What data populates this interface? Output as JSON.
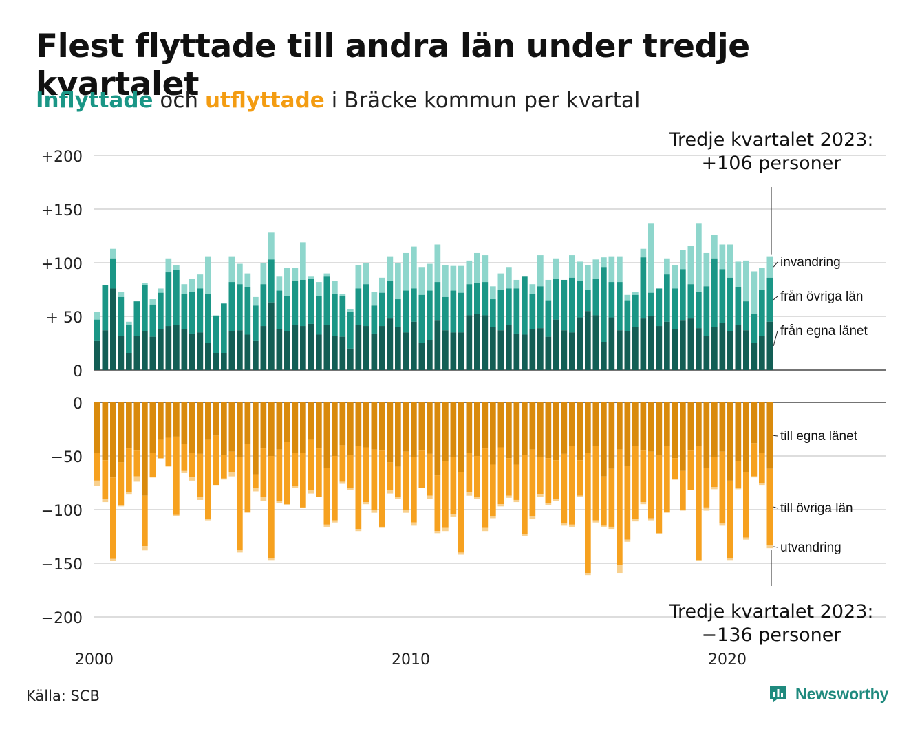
{
  "title": "Flest flyttade till andra län under tredje kvartalet",
  "subtitle": {
    "part1": "Inflyttade",
    "part2": "och",
    "part3": "utflyttade",
    "part4": "i Bräcke kommun per kvartal"
  },
  "source": "Källa: SCB",
  "brand": "Newsworthy",
  "colors": {
    "in_egna": "#135e55",
    "in_ovriga": "#1a9686",
    "in_invandring": "#8ed6cc",
    "out_egna": "#d98a0c",
    "out_ovriga": "#f6a11f",
    "out_utvandring": "#f8d08e",
    "accent_in": "#1a9686",
    "accent_out": "#f39c12",
    "grid": "#dddddd"
  },
  "chart_data": {
    "type": "bar",
    "stacked": true,
    "x_start": "2000 Q1",
    "x_ticks": [
      "2000",
      "2010",
      "2020"
    ],
    "y_ticks_in": [
      "+200",
      "+150",
      "+100",
      "+ 50",
      "0"
    ],
    "y_ticks_out": [
      "0",
      "−50",
      "−100",
      "−150",
      "−200"
    ],
    "ylim_in": [
      0,
      200
    ],
    "ylim_out": [
      -200,
      0
    ],
    "grid": true,
    "series_labels_in": [
      "invandring",
      "från övriga län",
      "från egna länet"
    ],
    "series_labels_out": [
      "till egna länet",
      "till övriga län",
      "utvandring"
    ],
    "annotation_in": {
      "line1": "Tredje kvartalet 2023:",
      "line2": "+106 personer"
    },
    "annotation_out": {
      "line1": "Tredje kvartalet 2023:",
      "line2": "−136 personer"
    },
    "inflyttade": {
      "fran_egna_lanet": [
        27,
        37,
        76,
        32,
        16,
        32,
        36,
        31,
        38,
        41,
        42,
        38,
        34,
        35,
        25,
        16,
        16,
        36,
        37,
        33,
        27,
        41,
        63,
        38,
        36,
        42,
        41,
        43,
        33,
        42,
        32,
        31,
        20,
        42,
        41,
        34,
        41,
        48,
        40,
        35,
        45,
        25,
        28,
        46,
        37,
        35,
        35,
        51,
        52,
        51,
        40,
        37,
        42,
        34,
        33,
        38,
        39,
        31,
        47,
        37,
        35,
        49,
        55,
        51,
        26,
        49,
        37,
        36,
        40,
        48,
        50,
        41,
        45,
        38,
        46,
        48,
        39,
        32,
        40,
        44,
        36,
        42,
        37,
        25,
        32,
        45
      ],
      "fran_ovriga_lan": [
        47,
        79,
        104,
        68,
        42,
        64,
        79,
        61,
        72,
        91,
        93,
        71,
        73,
        76,
        71,
        50,
        62,
        82,
        80,
        77,
        60,
        80,
        103,
        74,
        69,
        83,
        84,
        85,
        69,
        87,
        71,
        69,
        54,
        76,
        80,
        60,
        72,
        83,
        66,
        74,
        76,
        70,
        74,
        82,
        68,
        74,
        72,
        80,
        81,
        82,
        66,
        75,
        76,
        76,
        87,
        71,
        78,
        65,
        85,
        84,
        86,
        83,
        75,
        85,
        96,
        82,
        82,
        65,
        70,
        105,
        72,
        76,
        89,
        76,
        94,
        80,
        73,
        78,
        104,
        94,
        86,
        77,
        64,
        52,
        75,
        86
      ],
      "invandring": [
        54,
        79,
        113,
        73,
        45,
        64,
        81,
        66,
        76,
        104,
        98,
        80,
        85,
        89,
        106,
        51,
        61,
        106,
        99,
        90,
        68,
        100,
        128,
        87,
        95,
        95,
        119,
        87,
        82,
        90,
        83,
        71,
        57,
        98,
        100,
        73,
        86,
        106,
        100,
        109,
        115,
        96,
        99,
        117,
        98,
        97,
        97,
        102,
        109,
        107,
        78,
        90,
        96,
        84,
        87,
        80,
        107,
        84,
        104,
        82,
        107,
        101,
        98,
        103,
        105,
        106,
        106,
        70,
        73,
        113,
        137,
        72,
        104,
        98,
        112,
        116,
        137,
        109,
        126,
        117,
        117,
        101,
        102,
        92,
        95,
        106
      ]
    },
    "utflyttade": {
      "till_egna_lanet": [
        -47,
        -54,
        -70,
        -56,
        -43,
        -45,
        -87,
        -47,
        -35,
        -33,
        -32,
        -39,
        -47,
        -48,
        -35,
        -31,
        -49,
        -46,
        -51,
        -39,
        -67,
        -43,
        -50,
        -44,
        -37,
        -47,
        -47,
        -35,
        -43,
        -61,
        -50,
        -40,
        -49,
        -41,
        -42,
        -44,
        -45,
        -56,
        -60,
        -46,
        -51,
        -45,
        -48,
        -68,
        -55,
        -51,
        -65,
        -47,
        -50,
        -43,
        -58,
        -42,
        -52,
        -58,
        -49,
        -44,
        -51,
        -52,
        -54,
        -48,
        -41,
        -54,
        -47,
        -41,
        -69,
        -62,
        -44,
        -59,
        -41,
        -45,
        -46,
        -49,
        -41,
        -52,
        -64,
        -45,
        -41,
        -61,
        -51,
        -46,
        -73,
        -55,
        -65,
        -38,
        -47,
        -62
      ],
      "till_ovriga_lan": [
        -73,
        -90,
        -146,
        -96,
        -84,
        -69,
        -134,
        -70,
        -52,
        -59,
        -105,
        -64,
        -70,
        -88,
        -109,
        -77,
        -71,
        -65,
        -138,
        -102,
        -80,
        -88,
        -145,
        -92,
        -95,
        -78,
        -98,
        -82,
        -88,
        -114,
        -110,
        -74,
        -80,
        -118,
        -93,
        -100,
        -116,
        -82,
        -88,
        -100,
        -112,
        -80,
        -87,
        -120,
        -117,
        -104,
        -140,
        -84,
        -88,
        -117,
        -106,
        -95,
        -87,
        -91,
        -123,
        -106,
        -86,
        -94,
        -90,
        -113,
        -114,
        -87,
        -159,
        -110,
        -115,
        -116,
        -152,
        -128,
        -109,
        -93,
        -108,
        -122,
        -102,
        -72,
        -100,
        -82,
        -147,
        -98,
        -79,
        -113,
        -145,
        -80,
        -126,
        -69,
        -75,
        -133
      ],
      "utvandring": [
        -78,
        -93,
        -148,
        -97,
        -86,
        -74,
        -138,
        -70,
        -53,
        -60,
        -106,
        -66,
        -73,
        -91,
        -110,
        -77,
        -72,
        -69,
        -140,
        -103,
        -83,
        -92,
        -147,
        -94,
        -96,
        -80,
        -97,
        -85,
        -88,
        -116,
        -112,
        -76,
        -82,
        -120,
        -95,
        -103,
        -117,
        -85,
        -90,
        -103,
        -115,
        -80,
        -90,
        -122,
        -120,
        -107,
        -142,
        -87,
        -90,
        -120,
        -108,
        -97,
        -89,
        -93,
        -125,
        -109,
        -88,
        -96,
        -92,
        -115,
        -116,
        -88,
        -161,
        -112,
        -116,
        -118,
        -159,
        -130,
        -111,
        -95,
        -110,
        -123,
        -103,
        -72,
        -101,
        -81,
        -148,
        -101,
        -81,
        -115,
        -147,
        -81,
        -128,
        -70,
        -77,
        -136
      ]
    }
  }
}
